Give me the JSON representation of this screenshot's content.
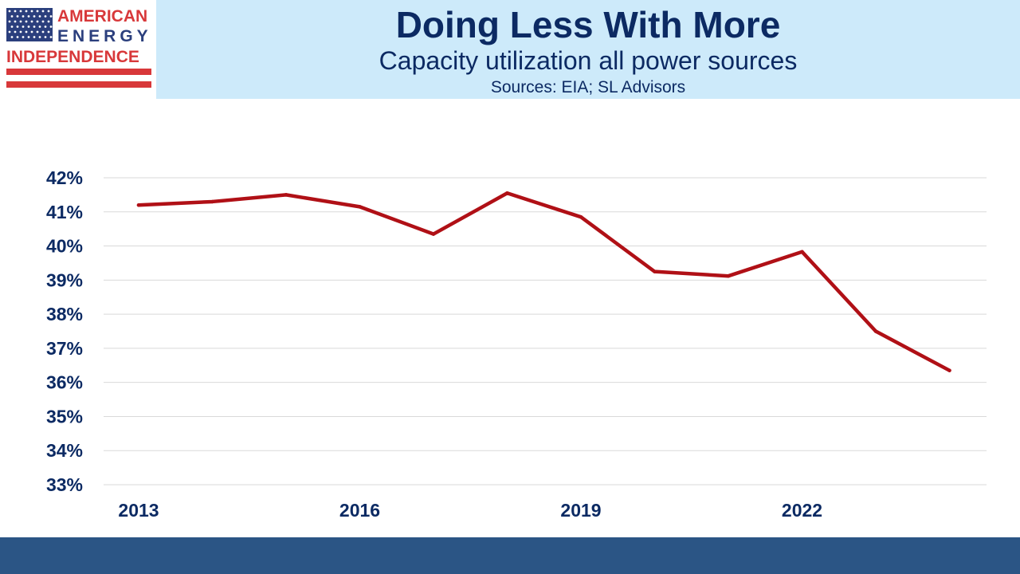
{
  "header": {
    "title": "Doing Less With More",
    "subtitle": "Capacity utilization all power sources",
    "source": "Sources: EIA; SL Advisors"
  },
  "logo": {
    "line1": "AMERICAN",
    "line2": "ENERGY",
    "line3": "INDEPENDENCE",
    "flag_blue": "#2b3f7d",
    "flag_red": "#d8383a"
  },
  "chart_data": {
    "type": "line",
    "title": "",
    "xlabel": "",
    "ylabel": "",
    "x": [
      2013,
      2014,
      2015,
      2016,
      2017,
      2018,
      2019,
      2020,
      2021,
      2022,
      2023,
      2024
    ],
    "x_tick_labels": [
      "2013",
      "2016",
      "2019",
      "2022"
    ],
    "x_tick_values": [
      2013,
      2016,
      2019,
      2022
    ],
    "y_tick_values": [
      33,
      34,
      35,
      36,
      37,
      38,
      39,
      40,
      41,
      42
    ],
    "y_tick_labels": [
      "33%",
      "34%",
      "35%",
      "36%",
      "37%",
      "38%",
      "39%",
      "40%",
      "41%",
      "42%"
    ],
    "ylim": [
      33,
      42
    ],
    "grid": true,
    "legend": "none",
    "series": [
      {
        "color": "#b01016",
        "values": [
          41.2,
          41.3,
          41.5,
          41.15,
          40.35,
          41.55,
          40.85,
          39.25,
          39.12,
          39.83,
          37.5,
          36.35
        ]
      }
    ]
  },
  "colors": {
    "text": "#0c2a63",
    "header_band": "#cdeafa",
    "footer_band": "#2b5585",
    "grid": "#d9d9d9"
  }
}
